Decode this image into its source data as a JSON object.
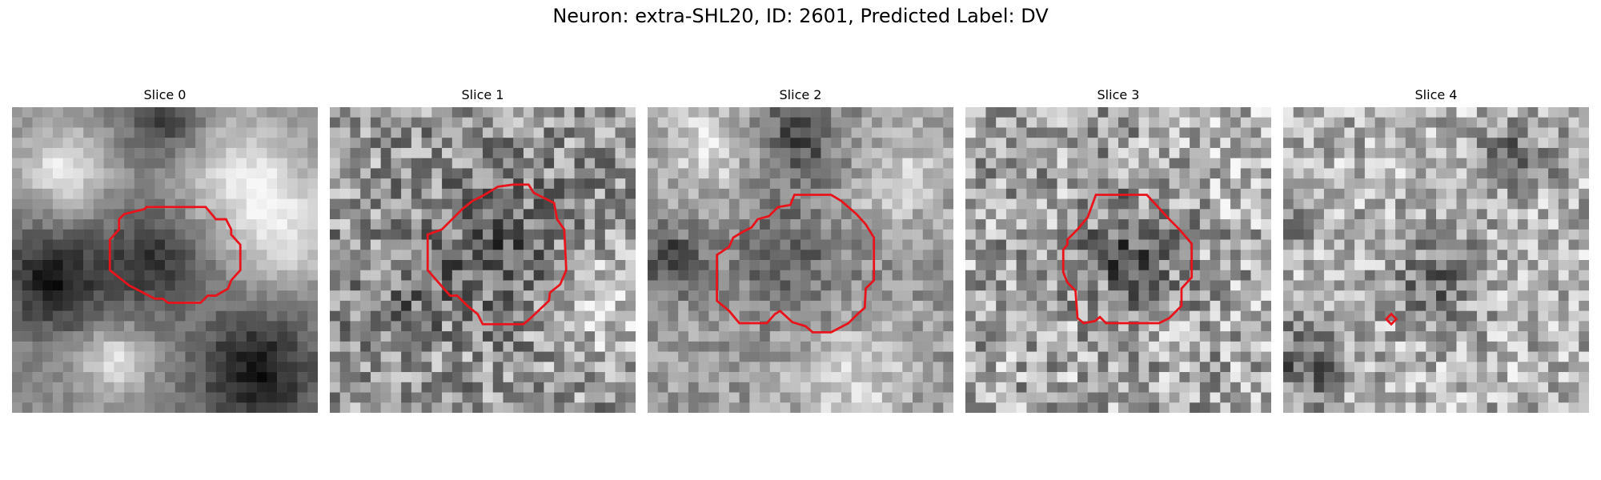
{
  "figure": {
    "title": "Neuron: extra-SHL20, ID: 2601, Predicted Label: DV",
    "contour_color": "#e8141c"
  },
  "slices": [
    {
      "title": "Slice 0",
      "contour": "large-rounded"
    },
    {
      "title": "Slice 1",
      "contour": "octagon"
    },
    {
      "title": "Slice 2",
      "contour": "irregular-large"
    },
    {
      "title": "Slice 3",
      "contour": "octagon"
    },
    {
      "title": "Slice 4",
      "contour": "tiny-diamond"
    }
  ]
}
